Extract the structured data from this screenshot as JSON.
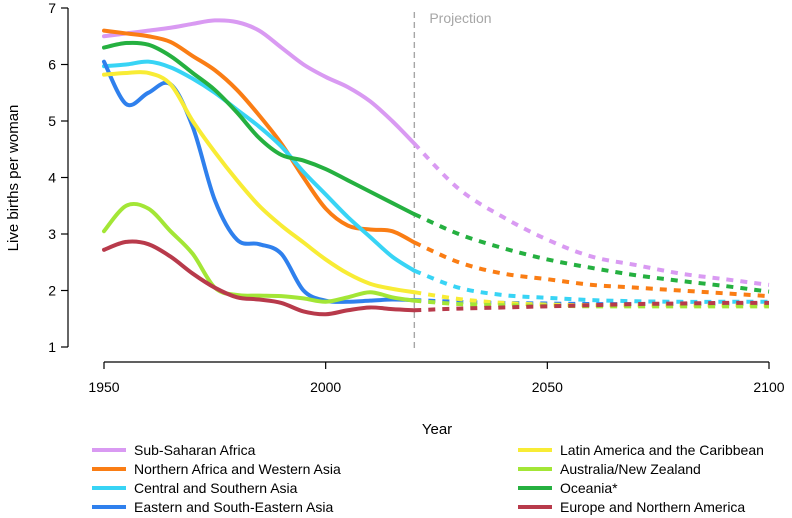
{
  "chart_data": {
    "type": "line",
    "title": "",
    "xlabel": "Year",
    "ylabel": "Live births per woman",
    "xlim": [
      1950,
      2100
    ],
    "ylim": [
      1,
      7
    ],
    "xticks": [
      1950,
      2000,
      2050,
      2100
    ],
    "yticks": [
      1,
      2,
      3,
      4,
      5,
      6,
      7
    ],
    "grid": false,
    "projection_start": 2020,
    "projection_label": "Projection",
    "legend_position": "bottom",
    "series": [
      {
        "name": "Sub-Saharan Africa",
        "color": "#d99af2",
        "x": [
          1950,
          1955,
          1960,
          1965,
          1970,
          1975,
          1980,
          1985,
          1990,
          1995,
          2000,
          2005,
          2010,
          2015,
          2020,
          2030,
          2040,
          2050,
          2060,
          2070,
          2080,
          2090,
          2100
        ],
        "y": [
          6.5,
          6.55,
          6.6,
          6.65,
          6.72,
          6.78,
          6.75,
          6.6,
          6.3,
          6.0,
          5.78,
          5.6,
          5.35,
          5.0,
          4.6,
          3.8,
          3.3,
          2.9,
          2.6,
          2.45,
          2.3,
          2.2,
          2.1
        ]
      },
      {
        "name": "Northern Africa and Western Asia",
        "color": "#fa7d14",
        "x": [
          1950,
          1955,
          1960,
          1965,
          1970,
          1975,
          1980,
          1985,
          1990,
          1995,
          2000,
          2005,
          2010,
          2015,
          2020,
          2030,
          2040,
          2050,
          2060,
          2070,
          2080,
          2090,
          2100
        ],
        "y": [
          6.6,
          6.55,
          6.5,
          6.4,
          6.15,
          5.9,
          5.55,
          5.1,
          4.6,
          4.0,
          3.45,
          3.15,
          3.08,
          3.05,
          2.85,
          2.5,
          2.3,
          2.2,
          2.1,
          2.05,
          2.0,
          1.95,
          1.9
        ]
      },
      {
        "name": "Central and Southern Asia",
        "color": "#38d4f5",
        "x": [
          1950,
          1955,
          1960,
          1965,
          1970,
          1975,
          1980,
          1985,
          1990,
          1995,
          2000,
          2005,
          2010,
          2015,
          2020,
          2030,
          2040,
          2050,
          2060,
          2070,
          2080,
          2090,
          2100
        ],
        "y": [
          5.97,
          6.0,
          6.05,
          5.95,
          5.75,
          5.5,
          5.2,
          4.9,
          4.55,
          4.1,
          3.7,
          3.3,
          2.95,
          2.6,
          2.35,
          2.05,
          1.92,
          1.87,
          1.83,
          1.81,
          1.8,
          1.8,
          1.8
        ]
      },
      {
        "name": "Eastern and South-Eastern Asia",
        "color": "#2f80ed",
        "x": [
          1950,
          1955,
          1960,
          1965,
          1970,
          1975,
          1980,
          1985,
          1990,
          1995,
          2000,
          2005,
          2010,
          2015,
          2020,
          2030,
          2040,
          2050,
          2060,
          2070,
          2080,
          2090,
          2100
        ],
        "y": [
          6.05,
          5.3,
          5.5,
          5.65,
          4.9,
          3.6,
          2.9,
          2.82,
          2.65,
          2.0,
          1.82,
          1.8,
          1.82,
          1.84,
          1.83,
          1.8,
          1.78,
          1.77,
          1.76,
          1.76,
          1.76,
          1.76,
          1.76
        ]
      },
      {
        "name": "Latin America and the Caribbean",
        "color": "#f8ec35",
        "x": [
          1950,
          1955,
          1960,
          1965,
          1970,
          1975,
          1980,
          1985,
          1990,
          1995,
          2000,
          2005,
          2010,
          2015,
          2020,
          2030,
          2040,
          2050,
          2060,
          2070,
          2080,
          2090,
          2100
        ],
        "y": [
          5.82,
          5.85,
          5.85,
          5.65,
          5.0,
          4.45,
          3.95,
          3.5,
          3.15,
          2.85,
          2.55,
          2.3,
          2.12,
          2.03,
          1.97,
          1.85,
          1.78,
          1.75,
          1.74,
          1.74,
          1.74,
          1.74,
          1.74
        ]
      },
      {
        "name": "Australia/New Zealand",
        "color": "#a3e636",
        "x": [
          1950,
          1955,
          1960,
          1965,
          1970,
          1975,
          1980,
          1985,
          1990,
          1995,
          2000,
          2005,
          2010,
          2015,
          2020,
          2030,
          2040,
          2050,
          2060,
          2070,
          2080,
          2090,
          2100
        ],
        "y": [
          3.05,
          3.5,
          3.45,
          3.05,
          2.65,
          2.05,
          1.92,
          1.91,
          1.9,
          1.86,
          1.8,
          1.88,
          1.97,
          1.88,
          1.82,
          1.76,
          1.74,
          1.73,
          1.72,
          1.72,
          1.72,
          1.72,
          1.72
        ]
      },
      {
        "name": "Oceania*",
        "color": "#25b040",
        "x": [
          1950,
          1955,
          1960,
          1965,
          1970,
          1975,
          1980,
          1985,
          1990,
          1995,
          2000,
          2005,
          2010,
          2015,
          2020,
          2030,
          2040,
          2050,
          2060,
          2070,
          2080,
          2090,
          2100
        ],
        "y": [
          6.3,
          6.38,
          6.35,
          6.15,
          5.85,
          5.55,
          5.15,
          4.7,
          4.4,
          4.3,
          4.15,
          3.95,
          3.75,
          3.55,
          3.35,
          3.0,
          2.75,
          2.55,
          2.4,
          2.27,
          2.17,
          2.08,
          1.98
        ]
      },
      {
        "name": "Europe and Northern America",
        "color": "#b83a4b",
        "x": [
          1950,
          1955,
          1960,
          1965,
          1970,
          1975,
          1980,
          1985,
          1990,
          1995,
          2000,
          2005,
          2010,
          2015,
          2020,
          2030,
          2040,
          2050,
          2060,
          2070,
          2080,
          2090,
          2100
        ],
        "y": [
          2.72,
          2.86,
          2.82,
          2.6,
          2.3,
          2.05,
          1.88,
          1.84,
          1.78,
          1.63,
          1.58,
          1.65,
          1.7,
          1.67,
          1.65,
          1.68,
          1.7,
          1.72,
          1.74,
          1.76,
          1.77,
          1.78,
          1.78
        ]
      }
    ]
  }
}
